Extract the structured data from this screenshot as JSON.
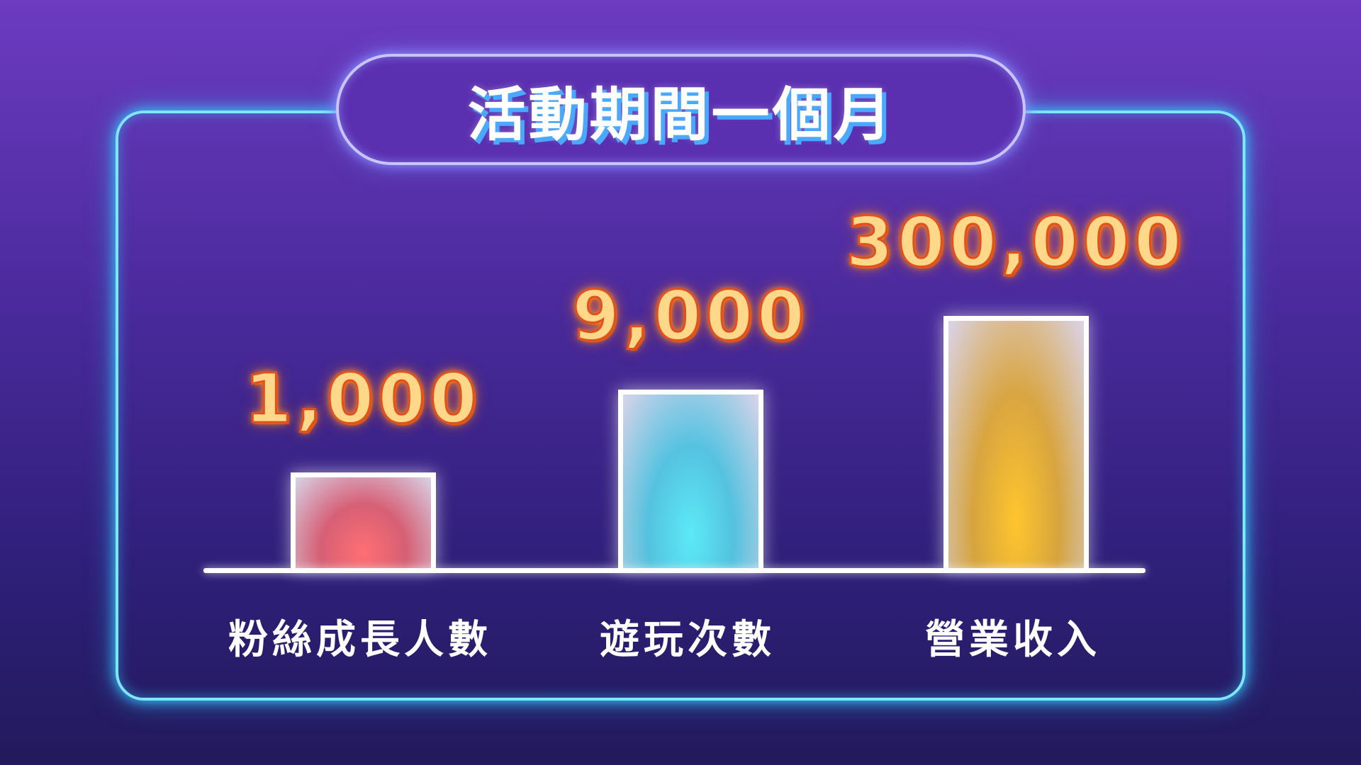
{
  "chart_data": {
    "type": "bar",
    "title": "活動期間一個月",
    "categories": [
      "粉絲成長人數",
      "遊玩次數",
      "營業收入"
    ],
    "values": [
      1000,
      9000,
      300000
    ],
    "value_labels": [
      "1,000",
      "9,000",
      "300,000"
    ],
    "bar_colors": [
      "#ff6f73",
      "#5ceaf7",
      "#ffc52e"
    ],
    "grid": false,
    "legend": "none"
  },
  "colors": {
    "background": "#4a2a9c",
    "panel_border": "#7fe6ff",
    "value_text": "#ff7a1e"
  }
}
